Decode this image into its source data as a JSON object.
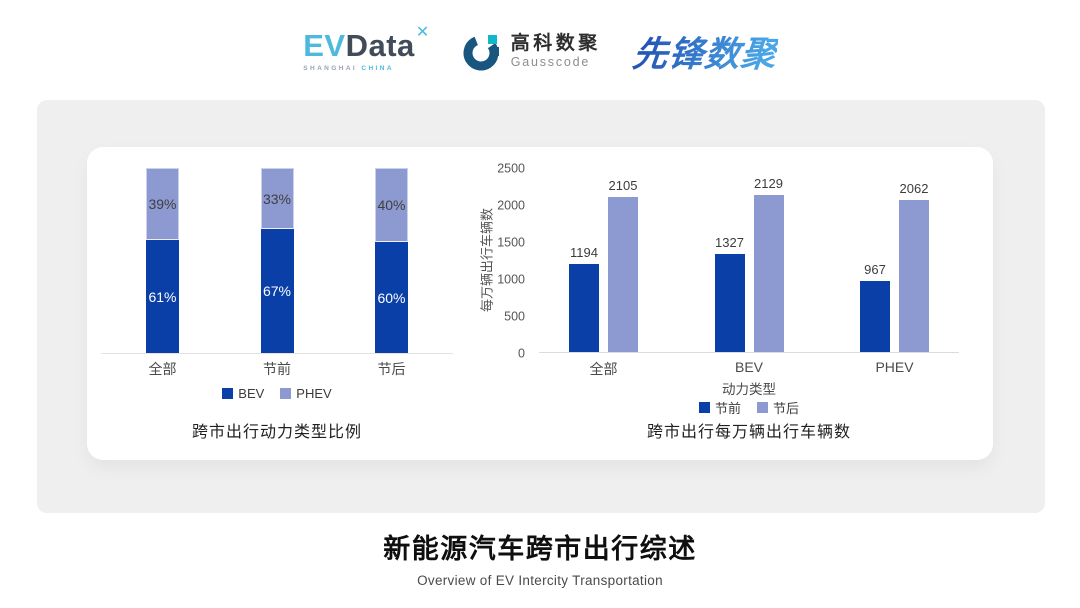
{
  "header": {
    "evdata": {
      "ev": "EV",
      "data": "Data",
      "mark": "✕",
      "sub_left": "SHANGHAI",
      "sub_right": "CHINA"
    },
    "gausscode": {
      "cn": "高科数聚",
      "en": "Gausscode"
    },
    "pioneer": {
      "text": "先锋数聚"
    },
    "brand_colors": {
      "evdata_blue": "#4cb9dd",
      "evdata_dark": "#414b5a",
      "gausscode_navy": "#19567f",
      "gausscode_teal": "#12b7c9",
      "pioneer_blue": "#2f7ad0"
    }
  },
  "chart_data": [
    {
      "type": "bar",
      "subtype": "stacked-percent",
      "title": "跨市出行动力类型比例",
      "categories": [
        "全部",
        "节前",
        "节后"
      ],
      "series": [
        {
          "name": "BEV",
          "color": "#0a3fa8",
          "label_color": "#ffffff",
          "values": [
            61,
            67,
            60
          ]
        },
        {
          "name": "PHEV",
          "color": "#8d99d1",
          "label_color": "#3f3f3f",
          "values": [
            39,
            33,
            40
          ]
        }
      ],
      "value_suffix": "%",
      "xlabel": "",
      "ylabel": "",
      "ylim": [
        0,
        100
      ],
      "grid": false,
      "legend_position": "bottom"
    },
    {
      "type": "bar",
      "subtype": "grouped",
      "title": "跨市出行每万辆出行车辆数",
      "categories": [
        "全部",
        "BEV",
        "PHEV"
      ],
      "series": [
        {
          "name": "节前",
          "color": "#0a3fa8",
          "values": [
            1194,
            1327,
            967
          ]
        },
        {
          "name": "节后",
          "color": "#8d99d1",
          "values": [
            2105,
            2129,
            2062
          ]
        }
      ],
      "xlabel": "动力类型",
      "ylabel": "每万辆出行车辆数",
      "ylim": [
        0,
        2500
      ],
      "yticks": [
        0,
        500,
        1000,
        1500,
        2000,
        2500
      ],
      "grid": false,
      "legend_position": "bottom"
    }
  ],
  "footer": {
    "title": "新能源汽车跨市出行综述",
    "subtitle": "Overview of EV Intercity Transportation"
  }
}
